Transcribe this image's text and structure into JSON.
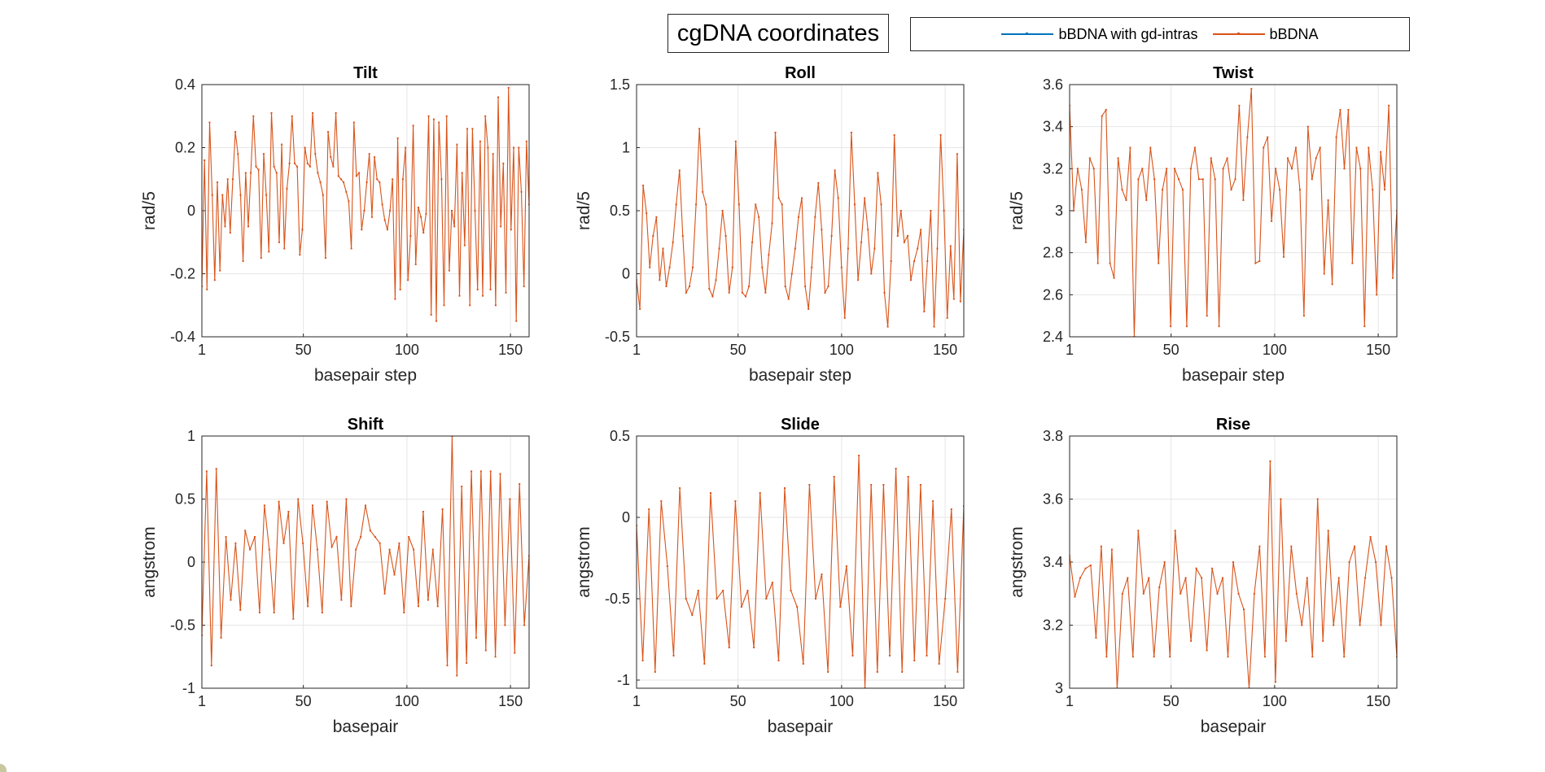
{
  "figure": {
    "title": "cgDNA coordinates",
    "legend": [
      {
        "label": "bBDNA with gd-intras",
        "color": "#0072BD"
      },
      {
        "label": "bBDNA",
        "color": "#D95319"
      }
    ],
    "line_color": "#D95319",
    "grid_color": "#e6e6e6"
  },
  "chart_data": [
    {
      "type": "line",
      "title": "Tilt",
      "xlabel": "basepair step",
      "ylabel": "rad/5",
      "xlim": [
        1,
        159
      ],
      "ylim": [
        -0.4,
        0.4
      ],
      "xticks": [
        1,
        50,
        100,
        150
      ],
      "xtick_labels": [
        "1",
        "50",
        "100",
        "150"
      ],
      "yticks": [
        -0.4,
        -0.2,
        0,
        0.2,
        0.4
      ],
      "ytick_labels": [
        "-0.4",
        "-0.2",
        "0",
        "0.2",
        "0.4"
      ],
      "grid": true,
      "legend_position": "top",
      "series": [
        {
          "name": "bBDNA",
          "x_start": 1,
          "values": [
            -0.24,
            0.16,
            -0.25,
            0.28,
            0.05,
            -0.22,
            0.09,
            -0.19,
            0.05,
            -0.05,
            0.1,
            -0.07,
            0.1,
            0.25,
            0.18,
            0.05,
            -0.16,
            0.12,
            -0.05,
            0.12,
            0.3,
            0.14,
            0.13,
            -0.15,
            0.18,
            0.05,
            -0.13,
            0.31,
            0.14,
            0.12,
            -0.1,
            0.21,
            -0.12,
            0.07,
            0.15,
            0.3,
            0.15,
            0.14,
            -0.14,
            -0.06,
            0.2,
            0.15,
            0.14,
            0.31,
            0.18,
            0.12,
            0.09,
            0.05,
            -0.15,
            0.25,
            0.17,
            0.14,
            0.31,
            0.11,
            0.1,
            0.09,
            0.06,
            0.03,
            -0.12,
            0.28,
            0.11,
            0.12,
            -0.06,
            0.0,
            0.09,
            0.18,
            -0.02,
            0.17,
            0.1,
            0.09,
            0.02,
            -0.03,
            -0.06,
            0.0,
            0.1,
            -0.28,
            0.23,
            -0.25,
            0.1,
            0.2,
            -0.22,
            -0.08,
            0.27,
            -0.17,
            0.01,
            -0.02,
            -0.07,
            -0.01,
            0.3,
            -0.33,
            0.29,
            -0.35,
            0.28,
            0.1,
            -0.3,
            0.3,
            -0.19,
            0.0,
            -0.05,
            0.21,
            -0.27,
            0.12,
            -0.11,
            0.26,
            -0.3,
            0.26,
            0.0,
            -0.25,
            0.22,
            -0.27,
            0.3,
            0.2,
            -0.25,
            0.18,
            -0.3,
            0.36,
            -0.05,
            0.15,
            -0.26,
            0.39,
            -0.06,
            0.2,
            -0.35,
            0.2,
            0.06,
            -0.24,
            0.22,
            0.02
          ]
        }
      ]
    },
    {
      "type": "line",
      "title": "Roll",
      "xlabel": "basepair step",
      "ylabel": "rad/5",
      "xlim": [
        1,
        159
      ],
      "ylim": [
        -0.5,
        1.5
      ],
      "xticks": [
        1,
        50,
        100,
        150
      ],
      "xtick_labels": [
        "1",
        "50",
        "100",
        "150"
      ],
      "yticks": [
        -0.5,
        0,
        0.5,
        1,
        1.5
      ],
      "ytick_labels": [
        "-0.5",
        "0",
        "0.5",
        "1",
        "1.5"
      ],
      "grid": true,
      "legend_position": "top",
      "series": [
        {
          "name": "bBDNA",
          "x_start": 1,
          "values": [
            -0.05,
            -0.28,
            0.7,
            0.48,
            0.05,
            0.3,
            0.45,
            -0.05,
            0.2,
            -0.1,
            0.05,
            0.25,
            0.55,
            0.82,
            0.3,
            -0.15,
            -0.1,
            0.05,
            0.55,
            1.15,
            0.65,
            0.55,
            -0.12,
            -0.18,
            -0.05,
            0.2,
            0.5,
            0.3,
            -0.15,
            0.05,
            1.05,
            0.55,
            -0.15,
            -0.18,
            -0.1,
            0.25,
            0.55,
            0.45,
            0.05,
            -0.15,
            0.15,
            0.4,
            1.12,
            0.6,
            0.55,
            -0.1,
            -0.2,
            0.0,
            0.2,
            0.45,
            0.6,
            -0.1,
            -0.28,
            0.05,
            0.45,
            0.72,
            0.35,
            -0.15,
            -0.1,
            0.3,
            0.82,
            0.6,
            0.05,
            -0.35,
            0.2,
            1.12,
            0.55,
            -0.05,
            0.25,
            0.6,
            0.35,
            0.0,
            0.2,
            0.8,
            0.55,
            -0.15,
            -0.42,
            0.1,
            1.1,
            0.3,
            0.5,
            0.25,
            0.3,
            -0.05,
            0.1,
            0.2,
            0.35,
            -0.3,
            0.1,
            0.5,
            -0.42,
            0.2,
            1.1,
            0.5,
            -0.35,
            0.22,
            -0.2,
            0.95,
            -0.22,
            0.35
          ]
        }
      ]
    },
    {
      "type": "line",
      "title": "Twist",
      "xlabel": "basepair step",
      "ylabel": "rad/5",
      "xlim": [
        1,
        159
      ],
      "ylim": [
        2.4,
        3.6
      ],
      "xticks": [
        1,
        50,
        100,
        150
      ],
      "xtick_labels": [
        "1",
        "50",
        "100",
        "150"
      ],
      "yticks": [
        2.4,
        2.6,
        2.8,
        3,
        3.2,
        3.4,
        3.6
      ],
      "ytick_labels": [
        "2.4",
        "2.6",
        "2.8",
        "3",
        "3.2",
        "3.4",
        "3.6"
      ],
      "grid": true,
      "legend_position": "top",
      "series": [
        {
          "name": "bBDNA",
          "x_start": 1,
          "values": [
            3.5,
            3.0,
            3.2,
            3.1,
            2.85,
            3.25,
            3.2,
            2.75,
            3.45,
            3.48,
            2.75,
            2.68,
            3.25,
            3.1,
            3.05,
            3.3,
            2.4,
            3.15,
            3.2,
            3.05,
            3.3,
            3.15,
            2.75,
            3.1,
            3.2,
            2.45,
            3.2,
            3.15,
            3.1,
            2.45,
            3.2,
            3.3,
            3.15,
            3.15,
            2.5,
            3.25,
            3.15,
            2.45,
            3.2,
            3.25,
            3.1,
            3.15,
            3.5,
            3.05,
            3.35,
            3.58,
            2.75,
            2.76,
            3.3,
            3.35,
            2.95,
            3.2,
            3.1,
            2.78,
            3.25,
            3.2,
            3.3,
            3.1,
            2.5,
            3.4,
            3.15,
            3.25,
            3.3,
            2.7,
            3.05,
            2.65,
            3.35,
            3.48,
            3.2,
            3.48,
            2.75,
            3.3,
            3.2,
            2.45,
            3.3,
            3.1,
            2.6,
            3.28,
            3.1,
            3.5,
            2.68,
            3.0
          ]
        }
      ]
    },
    {
      "type": "line",
      "title": "Shift",
      "xlabel": "basepair",
      "ylabel": "angstrom",
      "xlim": [
        1,
        159
      ],
      "ylim": [
        -1,
        1
      ],
      "xticks": [
        1,
        50,
        100,
        150
      ],
      "xtick_labels": [
        "1",
        "50",
        "100",
        "150"
      ],
      "yticks": [
        -1,
        -0.5,
        0,
        0.5,
        1
      ],
      "ytick_labels": [
        "-1",
        "-0.5",
        "0",
        "0.5",
        "1"
      ],
      "grid": true,
      "legend_position": "top",
      "series": [
        {
          "name": "bBDNA",
          "x_start": 1,
          "values": [
            -0.58,
            0.72,
            -0.82,
            0.74,
            -0.6,
            0.2,
            -0.3,
            0.15,
            -0.38,
            0.25,
            0.1,
            0.2,
            -0.4,
            0.45,
            0.1,
            -0.4,
            0.48,
            0.15,
            0.4,
            -0.45,
            0.5,
            0.15,
            -0.35,
            0.45,
            0.1,
            -0.4,
            0.48,
            0.12,
            0.2,
            -0.3,
            0.5,
            -0.35,
            0.1,
            0.2,
            0.45,
            0.25,
            0.2,
            0.15,
            -0.25,
            0.1,
            -0.1,
            0.15,
            -0.4,
            0.2,
            0.1,
            -0.35,
            0.4,
            -0.3,
            0.1,
            -0.35,
            0.42,
            -0.82,
            1.0,
            -0.9,
            0.6,
            -0.8,
            0.72,
            -0.6,
            0.72,
            -0.7,
            0.72,
            -0.75,
            0.7,
            -0.5,
            0.5,
            -0.72,
            0.62,
            -0.5,
            0.05
          ]
        }
      ]
    },
    {
      "type": "line",
      "title": "Slide",
      "xlabel": "basepair",
      "ylabel": "angstrom",
      "xlim": [
        1,
        159
      ],
      "ylim": [
        -1.05,
        0.5
      ],
      "xticks": [
        1,
        50,
        100,
        150
      ],
      "xtick_labels": [
        "1",
        "50",
        "100",
        "150"
      ],
      "yticks": [
        -1,
        -0.5,
        0,
        0.5
      ],
      "ytick_labels": [
        "-1",
        "-0.5",
        "0",
        "0.5"
      ],
      "grid": true,
      "legend_position": "top",
      "series": [
        {
          "name": "bBDNA",
          "x_start": 1,
          "values": [
            -0.05,
            -0.88,
            0.05,
            -0.95,
            0.1,
            -0.3,
            -0.85,
            0.18,
            -0.5,
            -0.6,
            -0.45,
            -0.9,
            0.15,
            -0.5,
            -0.45,
            -0.8,
            0.1,
            -0.55,
            -0.45,
            -0.8,
            0.15,
            -0.5,
            -0.4,
            -0.88,
            0.18,
            -0.45,
            -0.55,
            -0.9,
            0.2,
            -0.5,
            -0.35,
            -0.95,
            0.25,
            -0.55,
            -0.3,
            -0.85,
            0.38,
            -1.05,
            0.2,
            -0.95,
            0.2,
            -0.85,
            0.3,
            -0.95,
            0.25,
            -0.88,
            0.2,
            -0.85,
            0.1,
            -0.9,
            -0.5,
            0.05,
            -0.95,
            0.07
          ]
        }
      ]
    },
    {
      "type": "line",
      "title": "Rise",
      "xlabel": "basepair",
      "ylabel": "angstrom",
      "xlim": [
        1,
        159
      ],
      "ylim": [
        3,
        3.8
      ],
      "xticks": [
        1,
        50,
        100,
        150
      ],
      "xtick_labels": [
        "1",
        "50",
        "100",
        "150"
      ],
      "yticks": [
        3,
        3.2,
        3.4,
        3.6,
        3.8
      ],
      "ytick_labels": [
        "3",
        "3.2",
        "3.4",
        "3.6",
        "3.8"
      ],
      "grid": true,
      "legend_position": "top",
      "series": [
        {
          "name": "bBDNA",
          "x_start": 1,
          "values": [
            3.42,
            3.29,
            3.35,
            3.38,
            3.39,
            3.16,
            3.45,
            3.1,
            3.44,
            3.0,
            3.3,
            3.35,
            3.1,
            3.5,
            3.3,
            3.35,
            3.1,
            3.32,
            3.4,
            3.1,
            3.5,
            3.3,
            3.35,
            3.15,
            3.38,
            3.35,
            3.12,
            3.38,
            3.3,
            3.35,
            3.1,
            3.4,
            3.3,
            3.25,
            3.0,
            3.3,
            3.45,
            3.1,
            3.72,
            3.02,
            3.6,
            3.15,
            3.45,
            3.3,
            3.2,
            3.35,
            3.1,
            3.6,
            3.15,
            3.5,
            3.2,
            3.35,
            3.1,
            3.4,
            3.45,
            3.2,
            3.35,
            3.48,
            3.4,
            3.2,
            3.45,
            3.35,
            3.1
          ]
        }
      ]
    }
  ]
}
